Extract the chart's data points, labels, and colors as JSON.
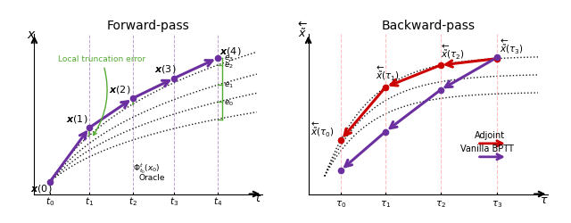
{
  "fig_width": 6.4,
  "fig_height": 2.5,
  "dpi": 100,
  "left_title": "Forward-pass",
  "right_title": "Backward-pass",
  "purple": "#6B2FA0",
  "red": "#CC0000",
  "green": "#55AA33",
  "pink_dashed": "#FFB0B0",
  "t_vals": [
    0.0,
    0.2,
    0.42,
    0.63,
    0.85
  ],
  "tau_vals": [
    0.08,
    0.3,
    0.57,
    0.85
  ]
}
